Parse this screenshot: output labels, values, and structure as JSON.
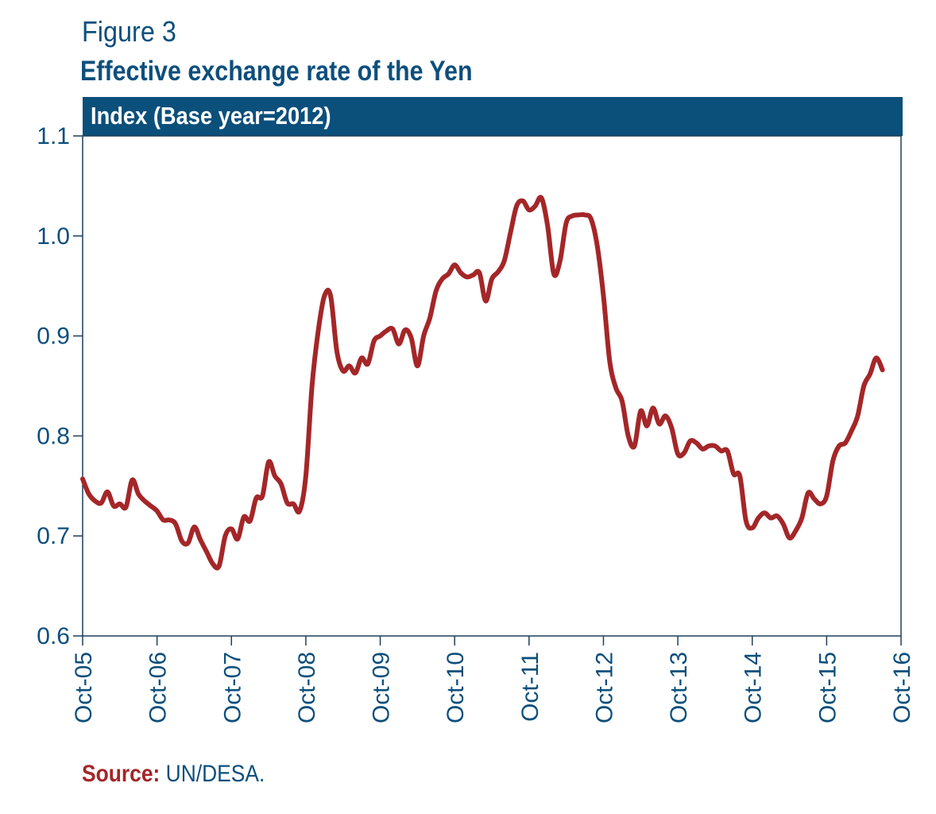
{
  "figure_label": "Figure 3",
  "title": "Effective exchange rate of the Yen",
  "banner": "Index (Base year=2012)",
  "source_label": "Source:",
  "source_text": " UN/DESA.",
  "colors": {
    "text_blue": "#0d4f7c",
    "banner_blue": "#0b4f7b",
    "line_red": "#a42628",
    "axis": "#1f3f5a"
  },
  "chart_data": {
    "type": "line",
    "title": "Effective exchange rate of the Yen",
    "ylabel": "Index (Base year=2012)",
    "xlabel": "",
    "ylim": [
      0.6,
      1.1
    ],
    "yticks": [
      "0.6",
      "0.7",
      "0.8",
      "0.9",
      "1.0",
      "1.1"
    ],
    "xlim": [
      0,
      132
    ],
    "xtick_labels": [
      "Oct-05",
      "Oct-06",
      "Oct-07",
      "Oct-08",
      "Oct-09",
      "Oct-10",
      "Oct-11",
      "Oct-12",
      "Oct-13",
      "Oct-14",
      "Oct-15",
      "Oct-16"
    ],
    "grid": false,
    "series": [
      {
        "name": "",
        "points": [
          [
            0,
            0.757
          ],
          [
            1,
            0.742
          ],
          [
            2,
            0.735
          ],
          [
            3,
            0.733
          ],
          [
            4,
            0.744
          ],
          [
            5,
            0.73
          ],
          [
            6,
            0.732
          ],
          [
            7,
            0.729
          ],
          [
            8,
            0.756
          ],
          [
            9,
            0.742
          ],
          [
            10,
            0.735
          ],
          [
            11,
            0.73
          ],
          [
            12,
            0.725
          ],
          [
            13,
            0.716
          ],
          [
            14,
            0.716
          ],
          [
            15,
            0.712
          ],
          [
            16,
            0.695
          ],
          [
            17,
            0.693
          ],
          [
            18,
            0.709
          ],
          [
            19,
            0.696
          ],
          [
            20,
            0.684
          ],
          [
            21,
            0.672
          ],
          [
            22,
            0.67
          ],
          [
            23,
            0.7
          ],
          [
            24,
            0.707
          ],
          [
            25,
            0.697
          ],
          [
            26,
            0.719
          ],
          [
            27,
            0.715
          ],
          [
            28,
            0.738
          ],
          [
            29,
            0.74
          ],
          [
            30,
            0.774
          ],
          [
            31,
            0.76
          ],
          [
            32,
            0.752
          ],
          [
            33,
            0.733
          ],
          [
            34,
            0.732
          ],
          [
            35,
            0.725
          ],
          [
            36,
            0.76
          ],
          [
            37,
            0.85
          ],
          [
            38,
            0.905
          ],
          [
            39,
            0.94
          ],
          [
            40,
            0.94
          ],
          [
            41,
            0.885
          ],
          [
            42,
            0.865
          ],
          [
            43,
            0.87
          ],
          [
            44,
            0.863
          ],
          [
            45,
            0.878
          ],
          [
            46,
            0.872
          ],
          [
            47,
            0.895
          ],
          [
            48,
            0.9
          ],
          [
            49,
            0.905
          ],
          [
            50,
            0.907
          ],
          [
            51,
            0.892
          ],
          [
            52,
            0.906
          ],
          [
            53,
            0.898
          ],
          [
            54,
            0.87
          ],
          [
            55,
            0.9
          ],
          [
            56,
            0.918
          ],
          [
            57,
            0.945
          ],
          [
            58,
            0.957
          ],
          [
            59,
            0.962
          ],
          [
            60,
            0.971
          ],
          [
            61,
            0.963
          ],
          [
            62,
            0.959
          ],
          [
            63,
            0.961
          ],
          [
            64,
            0.963
          ],
          [
            65,
            0.935
          ],
          [
            66,
            0.957
          ],
          [
            67,
            0.964
          ],
          [
            68,
            0.975
          ],
          [
            69,
            1.003
          ],
          [
            70,
            1.03
          ],
          [
            71,
            1.035
          ],
          [
            72,
            1.026
          ],
          [
            73,
            1.03
          ],
          [
            74,
            1.038
          ],
          [
            75,
            1.01
          ],
          [
            76,
            0.962
          ],
          [
            77,
            0.975
          ],
          [
            78,
            1.013
          ],
          [
            79,
            1.02
          ],
          [
            80,
            1.021
          ],
          [
            81,
            1.021
          ],
          [
            82,
            1.017
          ],
          [
            83,
            0.99
          ],
          [
            84,
            0.94
          ],
          [
            85,
            0.875
          ],
          [
            86,
            0.848
          ],
          [
            87,
            0.835
          ],
          [
            88,
            0.8
          ],
          [
            89,
            0.79
          ],
          [
            90,
            0.825
          ],
          [
            91,
            0.81
          ],
          [
            92,
            0.828
          ],
          [
            93,
            0.812
          ],
          [
            94,
            0.82
          ],
          [
            95,
            0.808
          ],
          [
            96,
            0.782
          ],
          [
            97,
            0.783
          ],
          [
            98,
            0.795
          ],
          [
            99,
            0.793
          ],
          [
            100,
            0.787
          ],
          [
            101,
            0.79
          ],
          [
            102,
            0.79
          ],
          [
            103,
            0.785
          ],
          [
            104,
            0.785
          ],
          [
            105,
            0.762
          ],
          [
            106,
            0.76
          ],
          [
            107,
            0.715
          ],
          [
            108,
            0.708
          ],
          [
            109,
            0.718
          ],
          [
            110,
            0.723
          ],
          [
            111,
            0.718
          ],
          [
            112,
            0.72
          ],
          [
            113,
            0.712
          ],
          [
            114,
            0.698
          ],
          [
            115,
            0.705
          ],
          [
            116,
            0.718
          ],
          [
            117,
            0.743
          ],
          [
            118,
            0.737
          ],
          [
            119,
            0.732
          ],
          [
            120,
            0.74
          ],
          [
            121,
            0.775
          ],
          [
            122,
            0.79
          ],
          [
            123,
            0.793
          ],
          [
            124,
            0.805
          ],
          [
            125,
            0.82
          ],
          [
            126,
            0.85
          ],
          [
            127,
            0.862
          ],
          [
            128,
            0.878
          ],
          [
            129,
            0.866
          ]
        ]
      }
    ]
  }
}
